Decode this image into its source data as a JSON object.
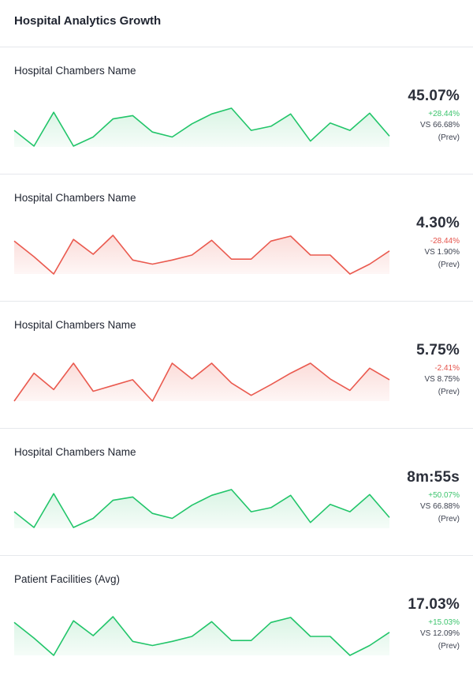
{
  "page": {
    "title": "Hospital Analytics Growth"
  },
  "colors": {
    "positive_line": "#22c56a",
    "positive_fill": "#d9f4e4",
    "negative_line": "#ea5a4f",
    "negative_fill": "#fbdcd9"
  },
  "cards": [
    {
      "label": "Hospital Chambers Name",
      "value": "45.07%",
      "change": "+28.44%",
      "vs": "VS 66.68%",
      "prev": "(Prev)",
      "trend": "up",
      "series": [
        20,
        1,
        42,
        1,
        12,
        34,
        38,
        18,
        12,
        28,
        40,
        47,
        20,
        25,
        40,
        7,
        29,
        20,
        41,
        13
      ]
    },
    {
      "label": "Hospital Chambers Name",
      "value": "4.30%",
      "change": "-28.44%",
      "vs": "VS 1.90%",
      "prev": "(Prev)",
      "trend": "down",
      "series": [
        40,
        21,
        0,
        42,
        24,
        47,
        17,
        12,
        17,
        23,
        41,
        18,
        18,
        40,
        46,
        23,
        23,
        0,
        12,
        28
      ]
    },
    {
      "label": "Hospital Chambers Name",
      "value": "5.75%",
      "change": "-2.41%",
      "vs": "VS 8.75%",
      "prev": "(Prev)",
      "trend": "down",
      "series": [
        0,
        34,
        14,
        46,
        12,
        19,
        26,
        0,
        46,
        27,
        46,
        22,
        7,
        20,
        34,
        46,
        27,
        13,
        40,
        26
      ]
    },
    {
      "label": "Hospital Chambers Name",
      "value": "8m:55s",
      "change": "+50.07%",
      "vs": "VS 66.88%",
      "prev": "(Prev)",
      "trend": "up",
      "series": [
        20,
        1,
        42,
        1,
        12,
        34,
        38,
        18,
        12,
        28,
        40,
        47,
        20,
        25,
        40,
        7,
        29,
        20,
        41,
        13
      ]
    },
    {
      "label": "Patient Facilities (Avg)",
      "value": "17.03%",
      "change": "+15.03%",
      "vs": "VS 12.09%",
      "prev": "(Prev)",
      "trend": "up",
      "series": [
        40,
        21,
        0,
        42,
        24,
        47,
        17,
        12,
        17,
        23,
        41,
        18,
        18,
        40,
        46,
        23,
        23,
        0,
        12,
        28
      ]
    }
  ]
}
